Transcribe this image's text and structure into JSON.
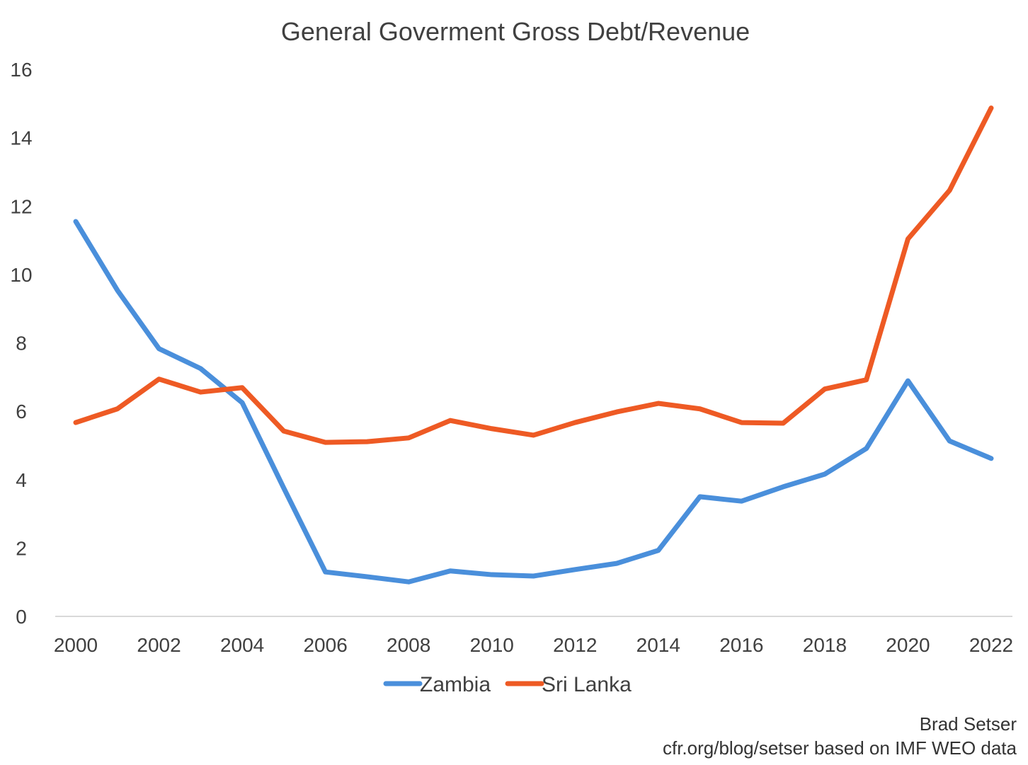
{
  "chart_data": {
    "type": "line",
    "title": "General Goverment Gross Debt/Revenue",
    "xlabel": "",
    "ylabel": "",
    "ylim": [
      0,
      16
    ],
    "yticks": [
      0,
      2,
      4,
      6,
      8,
      10,
      12,
      14,
      16
    ],
    "xticks": [
      2000,
      2002,
      2004,
      2006,
      2008,
      2010,
      2012,
      2014,
      2016,
      2018,
      2020,
      2022
    ],
    "grid": false,
    "legend_position": "bottom",
    "x": [
      2000,
      2001,
      2002,
      2003,
      2004,
      2005,
      2006,
      2007,
      2008,
      2009,
      2010,
      2011,
      2012,
      2013,
      2014,
      2015,
      2016,
      2017,
      2018,
      2019,
      2020,
      2021,
      2022
    ],
    "series": [
      {
        "name": "Zambia",
        "color": "#4A8FDB",
        "values": [
          11.55,
          9.54,
          7.83,
          7.25,
          6.25,
          3.75,
          1.3,
          1.16,
          1.01,
          1.33,
          1.22,
          1.18,
          1.37,
          1.55,
          1.93,
          3.5,
          3.37,
          3.79,
          4.16,
          4.91,
          6.89,
          5.13,
          4.62
        ]
      },
      {
        "name": "Sri Lanka",
        "color": "#EE5A24",
        "values": [
          5.67,
          6.07,
          6.94,
          6.56,
          6.69,
          5.42,
          5.09,
          5.11,
          5.22,
          5.73,
          5.49,
          5.3,
          5.67,
          5.98,
          6.23,
          6.07,
          5.67,
          5.65,
          6.65,
          6.92,
          11.04,
          12.46,
          14.87
        ]
      }
    ]
  },
  "credits": {
    "author": "Brad Setser",
    "source": "cfr.org/blog/setser based on IMF WEO data"
  }
}
